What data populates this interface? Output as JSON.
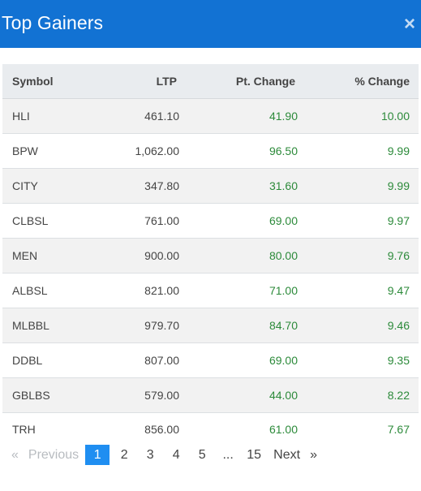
{
  "modal": {
    "title": "Top Gainers",
    "close_icon": "×"
  },
  "colors": {
    "header_bg": "#1272d3",
    "positive": "#2c8a3a",
    "active_page": "#1f8ef1"
  },
  "table": {
    "headers": {
      "symbol": "Symbol",
      "ltp": "LTP",
      "pt_change": "Pt. Change",
      "pct_change": "% Change"
    },
    "rows": [
      {
        "symbol": "HLI",
        "ltp": "461.10",
        "pt_change": "41.90",
        "pct_change": "10.00"
      },
      {
        "symbol": "BPW",
        "ltp": "1,062.00",
        "pt_change": "96.50",
        "pct_change": "9.99"
      },
      {
        "symbol": "CITY",
        "ltp": "347.80",
        "pt_change": "31.60",
        "pct_change": "9.99"
      },
      {
        "symbol": "CLBSL",
        "ltp": "761.00",
        "pt_change": "69.00",
        "pct_change": "9.97"
      },
      {
        "symbol": "MEN",
        "ltp": "900.00",
        "pt_change": "80.00",
        "pct_change": "9.76"
      },
      {
        "symbol": "ALBSL",
        "ltp": "821.00",
        "pt_change": "71.00",
        "pct_change": "9.47"
      },
      {
        "symbol": "MLBBL",
        "ltp": "979.70",
        "pt_change": "84.70",
        "pct_change": "9.46"
      },
      {
        "symbol": "DDBL",
        "ltp": "807.00",
        "pt_change": "69.00",
        "pct_change": "9.35"
      },
      {
        "symbol": "GBLBS",
        "ltp": "579.00",
        "pt_change": "44.00",
        "pct_change": "8.22"
      },
      {
        "symbol": "TRH",
        "ltp": "856.00",
        "pt_change": "61.00",
        "pct_change": "7.67"
      }
    ]
  },
  "pagination": {
    "first_glyph": "«",
    "previous_label": "Previous",
    "pages": [
      "1",
      "2",
      "3",
      "4",
      "5",
      "...",
      "15"
    ],
    "active_page": "1",
    "next_label": "Next",
    "last_glyph": "»"
  }
}
